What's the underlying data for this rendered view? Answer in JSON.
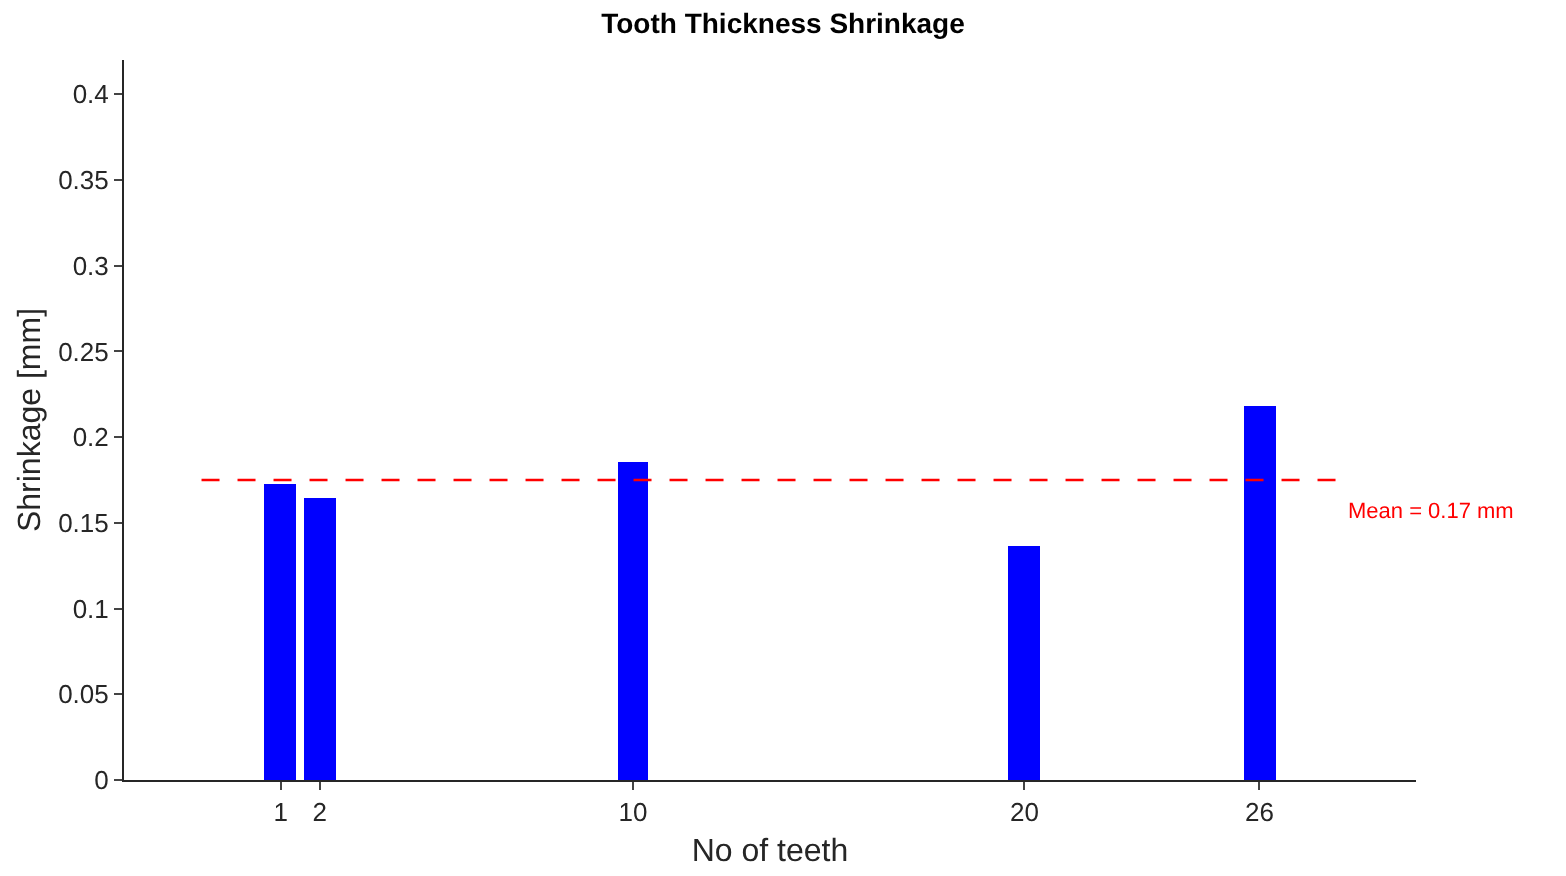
{
  "chart_data": {
    "type": "bar",
    "title": "Tooth Thickness Shrinkage",
    "xlabel": "No of teeth",
    "ylabel": "Shrinkage [mm]",
    "x": [
      1,
      2,
      10,
      20,
      26
    ],
    "values": [
      0.173,
      0.164,
      0.185,
      0.136,
      0.218
    ],
    "color": "#0000ff",
    "xlim": [
      -3,
      30
    ],
    "xticks": [
      1,
      2,
      10,
      20,
      26
    ],
    "ylim": [
      0,
      0.42
    ],
    "yticks": [
      0,
      0.05,
      0.1,
      0.15,
      0.2,
      0.25,
      0.3,
      0.35,
      0.4
    ],
    "grid": false,
    "ref_lines": [
      {
        "axis": "y",
        "value": 0.175,
        "label": "Mean = 0.17 mm",
        "color": "#ff0000",
        "line_style": "dashed"
      }
    ]
  }
}
